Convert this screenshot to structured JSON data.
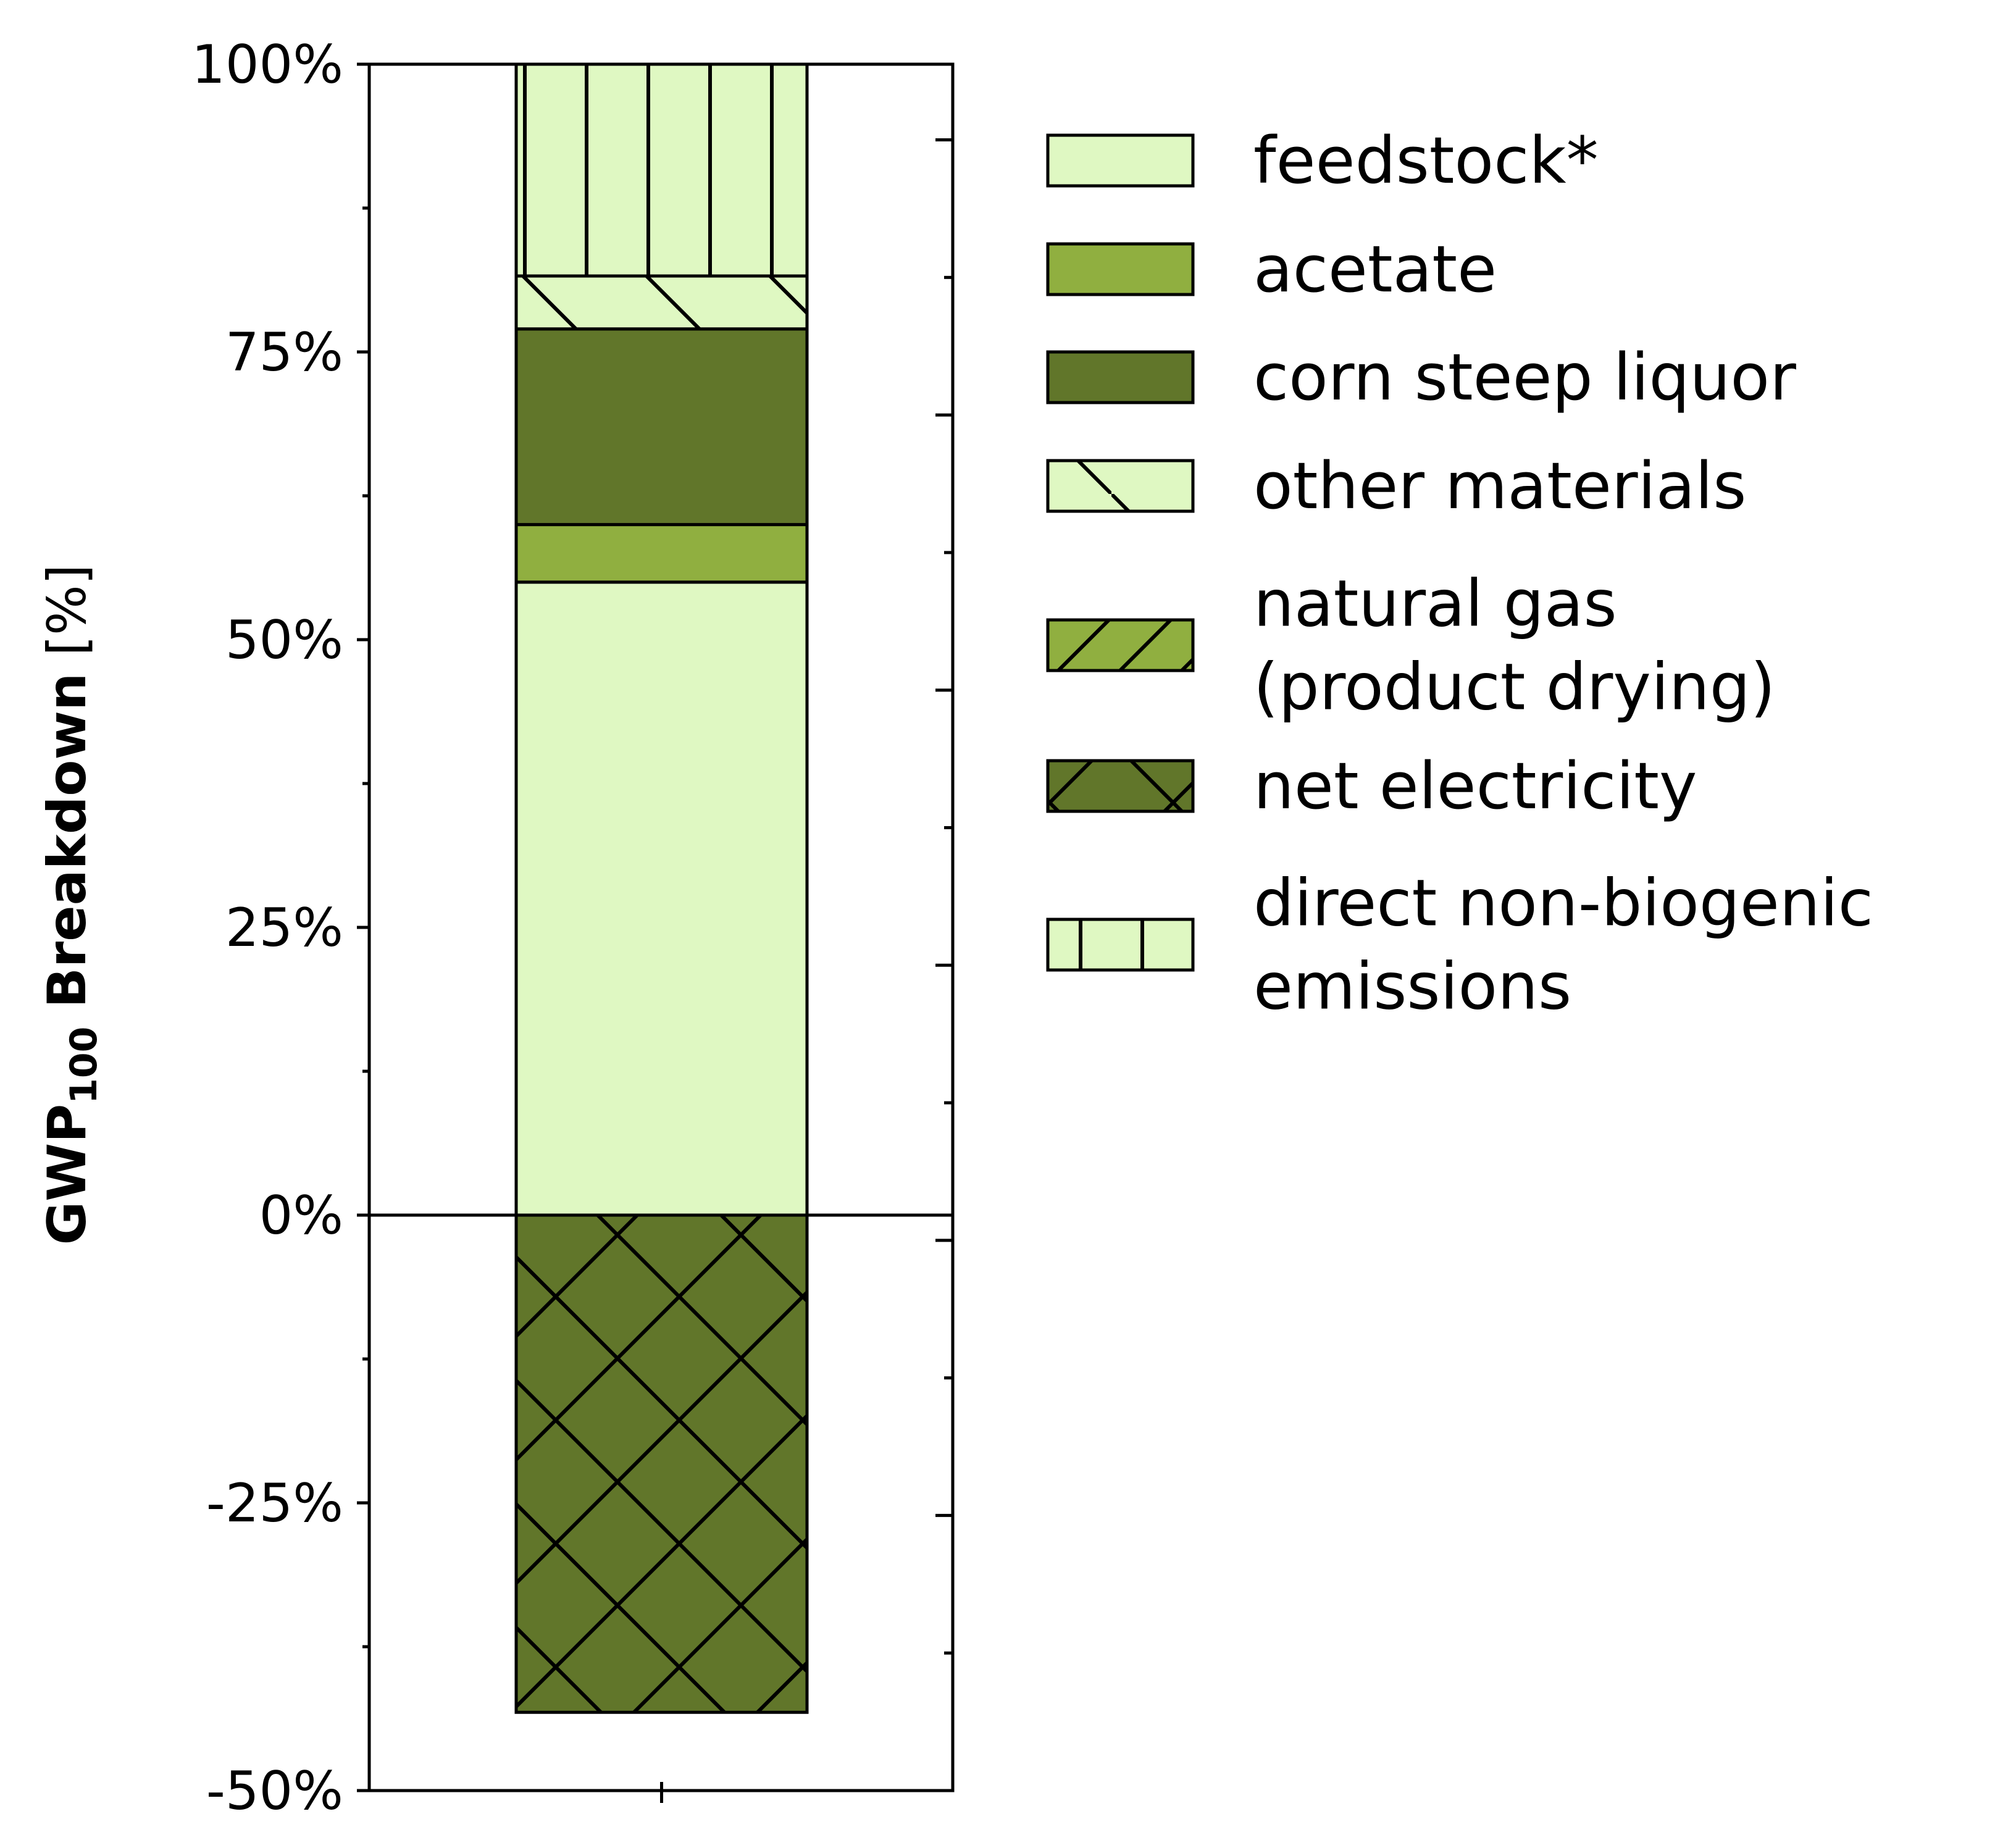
{
  "chart_data": {
    "type": "bar",
    "stacked": true,
    "ylabel_main": "GWP",
    "ylabel_sub": "100",
    "ylabel_rest": " Breakdown",
    "ylabel_unit": " [%]",
    "ylim": [
      -50,
      100
    ],
    "y_ticks": [
      100,
      75,
      50,
      25,
      0,
      -25,
      -50
    ],
    "y_tick_labels": [
      "100%",
      "75%",
      "50%",
      "25%",
      "0%",
      "-25%",
      "-50%"
    ],
    "legend_position": "right",
    "series": [
      {
        "name": "feedstock*",
        "value": 55.0,
        "color": "#dff8c2",
        "hatch": "none"
      },
      {
        "name": "acetate",
        "value": 5.0,
        "color": "#90af40",
        "hatch": "none"
      },
      {
        "name": "corn steep liquor",
        "value": 17.0,
        "color": "#61762a",
        "hatch": "none"
      },
      {
        "name": "other materials",
        "value": 4.6,
        "color": "#dff8c2",
        "hatch": "backslash"
      },
      {
        "name": "natural gas\n(product drying)",
        "value": 0.0,
        "color": "#90af40",
        "hatch": "slash"
      },
      {
        "name": "net electricity",
        "value": -43.2,
        "color": "#61762a",
        "hatch": "cross"
      },
      {
        "name": "direct non-biogenic\nemissions",
        "value": 18.4,
        "color": "#dff8c2",
        "hatch": "vertical"
      }
    ]
  }
}
